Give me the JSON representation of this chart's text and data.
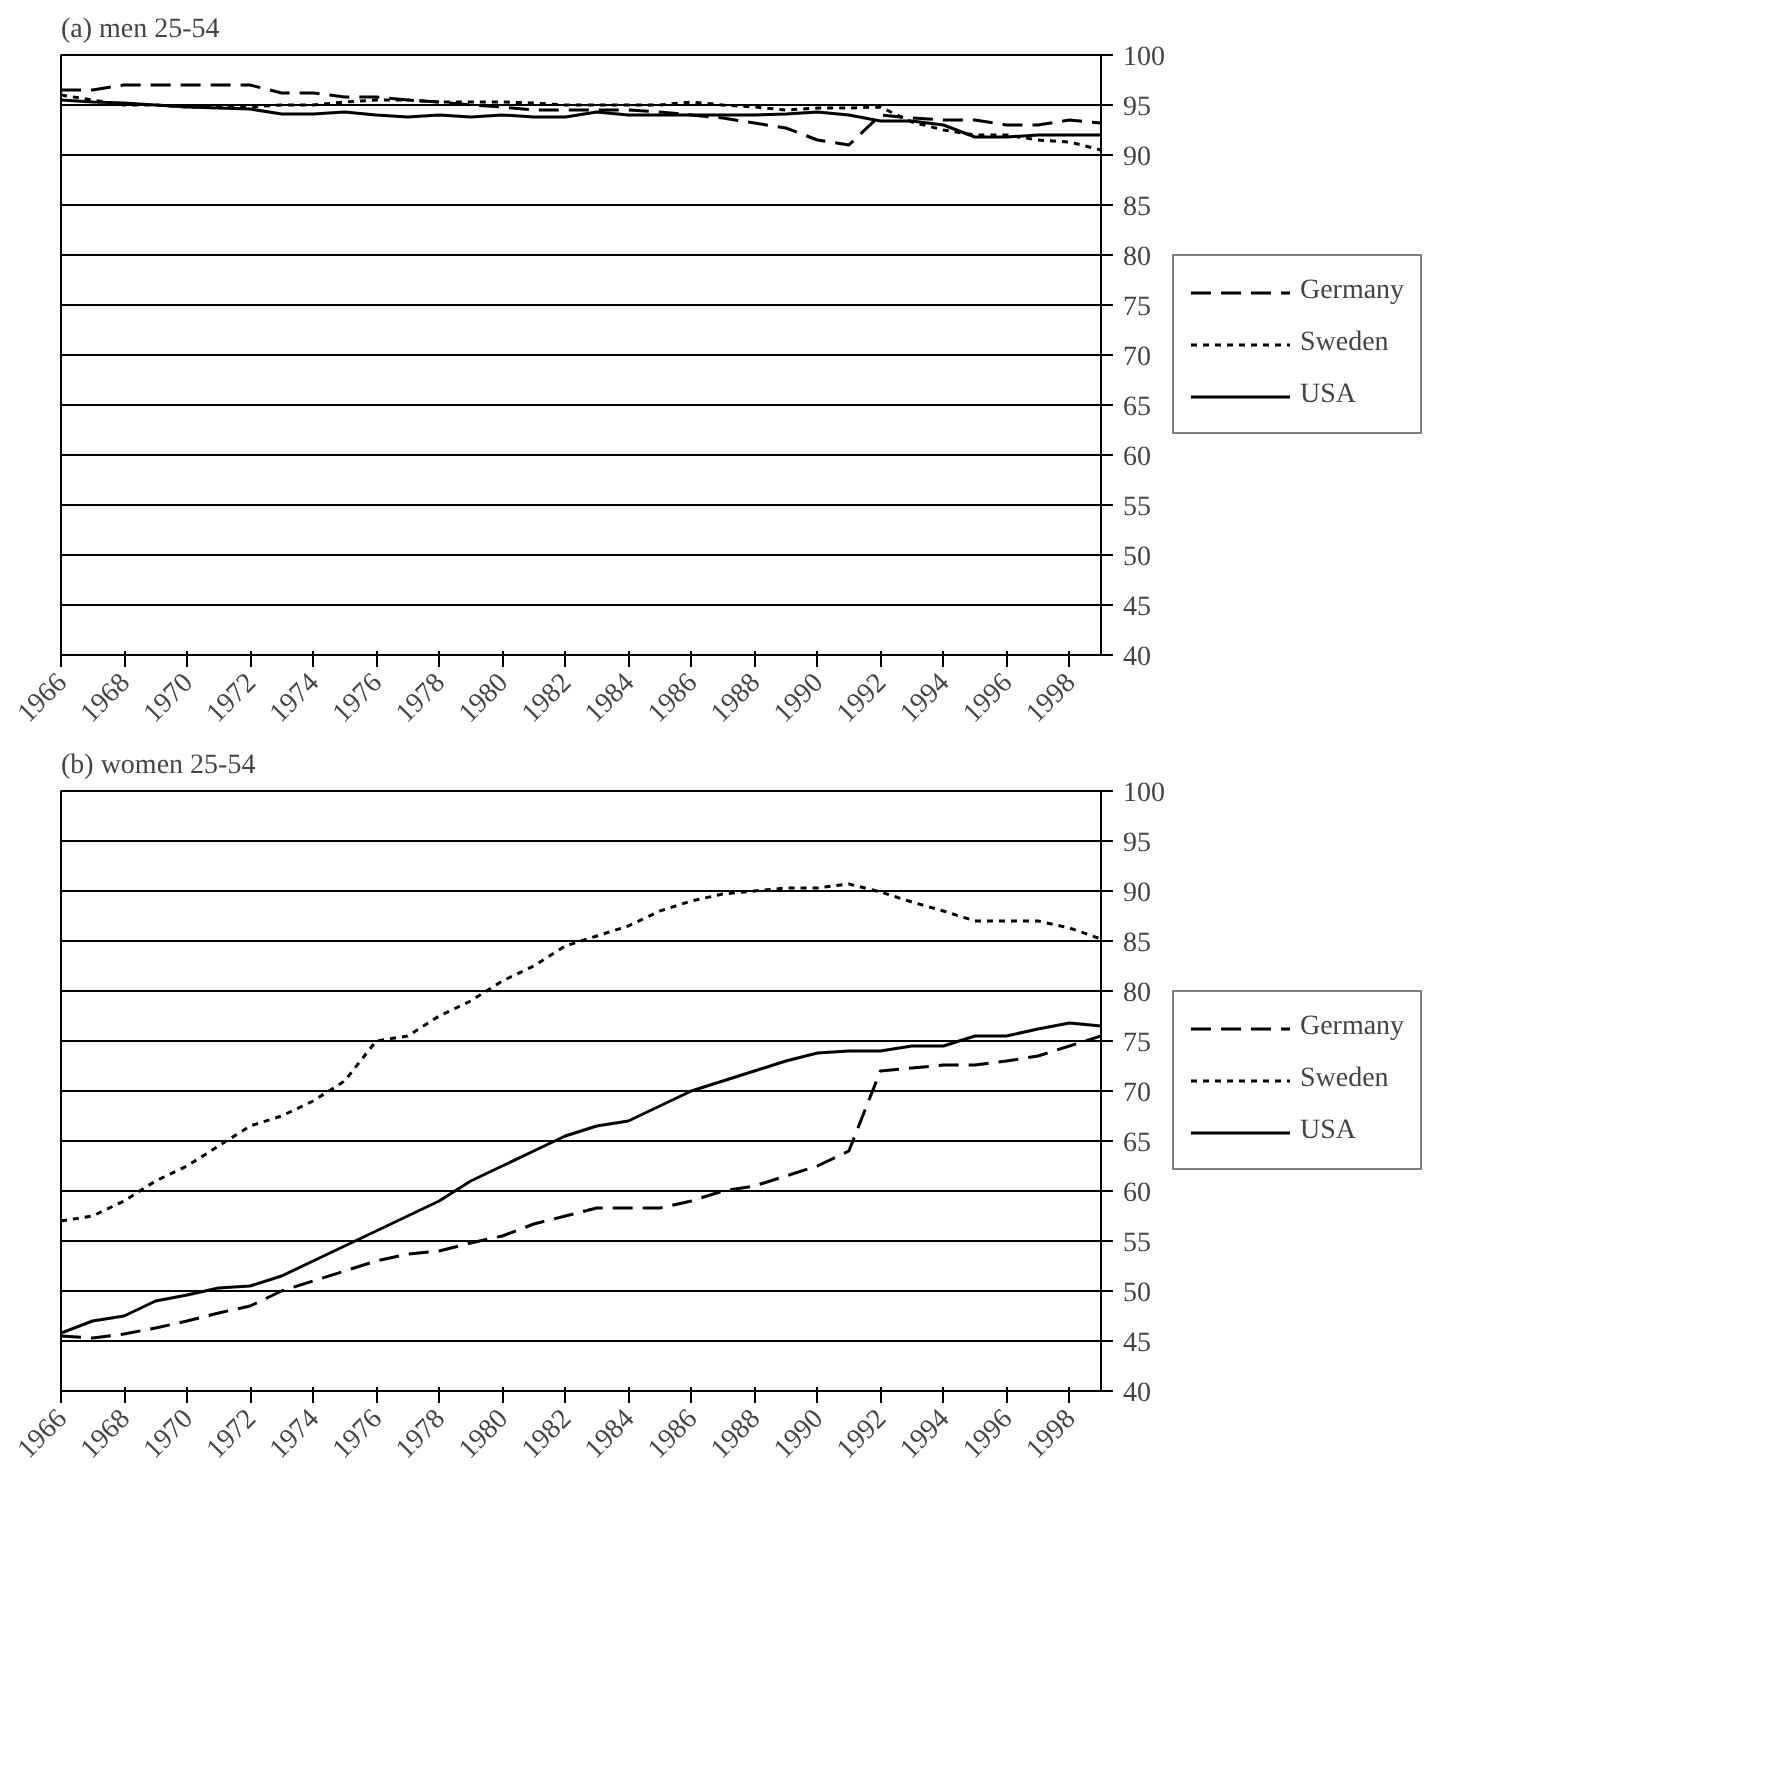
{
  "chart_data": [
    {
      "type": "line",
      "title": "(a) men 25-54",
      "x": [
        1966,
        1967,
        1968,
        1969,
        1970,
        1971,
        1972,
        1973,
        1974,
        1975,
        1976,
        1977,
        1978,
        1979,
        1980,
        1981,
        1982,
        1983,
        1984,
        1985,
        1986,
        1987,
        1988,
        1989,
        1990,
        1991,
        1992,
        1993,
        1994,
        1995,
        1996,
        1997,
        1998,
        1999
      ],
      "xlim": [
        1966,
        1999
      ],
      "xticks": [
        1966,
        1968,
        1970,
        1972,
        1974,
        1976,
        1978,
        1980,
        1982,
        1984,
        1986,
        1988,
        1990,
        1992,
        1994,
        1996,
        1998
      ],
      "ylim": [
        40,
        100
      ],
      "yticks": [
        40,
        45,
        50,
        55,
        60,
        65,
        70,
        75,
        80,
        85,
        90,
        95,
        100
      ],
      "grid": "y",
      "legend": "right",
      "series": [
        {
          "name": "Germany",
          "color": "#000000",
          "line_style": "dashed",
          "values": [
            96.5,
            96.5,
            97,
            97,
            97,
            97,
            97,
            96.2,
            96.2,
            95.8,
            95.8,
            95.5,
            95.3,
            95,
            94.8,
            94.5,
            94.5,
            94.5,
            94.5,
            94.3,
            94,
            93.7,
            93.2,
            92.7,
            91.5,
            91,
            94,
            93.7,
            93.5,
            93.5,
            93,
            93,
            93.5,
            93.2
          ]
        },
        {
          "name": "Sweden",
          "color": "#000000",
          "line_style": "dotted",
          "values": [
            96,
            95.5,
            95,
            95,
            94.8,
            94.8,
            94.8,
            95,
            95,
            95.3,
            95.5,
            95.5,
            95.3,
            95.3,
            95.3,
            95.2,
            95,
            95,
            95,
            95,
            95.3,
            95,
            94.8,
            94.5,
            94.7,
            94.7,
            94.8,
            93.3,
            92.5,
            92,
            92,
            91.5,
            91.3,
            90.5
          ]
        },
        {
          "name": "USA",
          "color": "#000000",
          "line_style": "solid",
          "values": [
            95.5,
            95.3,
            95.2,
            95,
            94.8,
            94.7,
            94.6,
            94.1,
            94.1,
            94.3,
            94,
            93.8,
            94,
            93.8,
            94,
            93.8,
            93.8,
            94.3,
            94,
            94,
            94,
            94,
            94,
            94.1,
            94.3,
            94,
            93.4,
            93.4,
            93,
            91.8,
            91.8,
            92,
            92,
            92
          ]
        }
      ]
    },
    {
      "type": "line",
      "title": "(b) women 25-54",
      "x": [
        1966,
        1967,
        1968,
        1969,
        1970,
        1971,
        1972,
        1973,
        1974,
        1975,
        1976,
        1977,
        1978,
        1979,
        1980,
        1981,
        1982,
        1983,
        1984,
        1985,
        1986,
        1987,
        1988,
        1989,
        1990,
        1991,
        1992,
        1993,
        1994,
        1995,
        1996,
        1997,
        1998,
        1999
      ],
      "xlim": [
        1966,
        1999
      ],
      "xticks": [
        1966,
        1968,
        1970,
        1972,
        1974,
        1976,
        1978,
        1980,
        1982,
        1984,
        1986,
        1988,
        1990,
        1992,
        1994,
        1996,
        1998
      ],
      "ylim": [
        40,
        100
      ],
      "yticks": [
        40,
        45,
        50,
        55,
        60,
        65,
        70,
        75,
        80,
        85,
        90,
        95,
        100
      ],
      "grid": "y",
      "legend": "right",
      "series": [
        {
          "name": "Germany",
          "color": "#000000",
          "line_style": "dashed",
          "values": [
            45.5,
            45.3,
            45.7,
            46.3,
            47,
            47.8,
            48.5,
            50,
            51,
            52,
            53,
            53.7,
            54,
            54.8,
            55.5,
            56.7,
            57.5,
            58.3,
            58.3,
            58.3,
            59,
            60,
            60.5,
            61.5,
            62.5,
            64,
            72,
            72.3,
            72.6,
            72.6,
            73,
            73.5,
            74.5,
            75.5
          ]
        },
        {
          "name": "Sweden",
          "color": "#000000",
          "line_style": "dotted",
          "values": [
            57,
            57.5,
            59,
            61,
            62.5,
            64.5,
            66.5,
            67.5,
            69,
            71,
            75,
            75.5,
            77.5,
            79,
            81,
            82.5,
            84.5,
            85.5,
            86.5,
            88,
            89,
            89.7,
            90,
            90.3,
            90.3,
            90.7,
            89.9,
            88.9,
            88,
            87,
            87,
            87,
            86.3,
            85.2
          ]
        },
        {
          "name": "USA",
          "color": "#000000",
          "line_style": "solid",
          "values": [
            45.8,
            47,
            47.5,
            49,
            49.6,
            50.3,
            50.5,
            51.5,
            53,
            54.5,
            56,
            57.5,
            59,
            61,
            62.5,
            64,
            65.5,
            66.5,
            67,
            68.5,
            70,
            71,
            72,
            73,
            73.8,
            74,
            74,
            74.5,
            74.5,
            75.5,
            75.5,
            76.2,
            76.8,
            76.5
          ]
        }
      ]
    }
  ]
}
